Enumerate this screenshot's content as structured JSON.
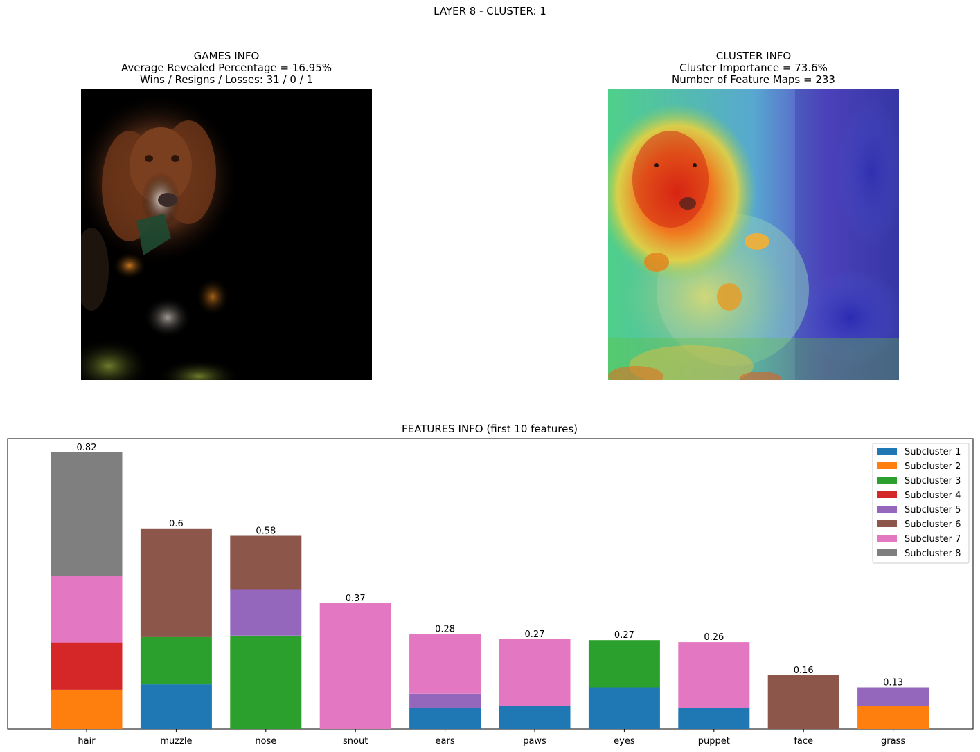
{
  "suptitle": "LAYER 8 - CLUSTER: 1",
  "games_panel": {
    "title": "GAMES INFO",
    "line1": "Average Revealed Percentage = 16.95%",
    "line2": "Wins / Resigns / Losses: 31 / 0 / 1"
  },
  "cluster_panel": {
    "title": "CLUSTER INFO",
    "line1": "Cluster Importance = 73.6%",
    "line2": "Number of Feature Maps = 233"
  },
  "chart_data": {
    "type": "bar",
    "stacked": true,
    "title": "FEATURES INFO (first 10 features)",
    "xlabel": "",
    "ylabel": "",
    "ylim": [
      0,
      0.861
    ],
    "legend_position": "top-right",
    "categories": [
      "hair",
      "muzzle",
      "nose",
      "snout",
      "ears",
      "paws",
      "eyes",
      "puppet",
      "face",
      "grass"
    ],
    "totals_labels": [
      "0.82",
      "0.6",
      "0.58",
      "0.37",
      "0.28",
      "0.27",
      "0.27",
      "0.26",
      "0.16",
      "0.13"
    ],
    "series": [
      {
        "name": "Subcluster 1",
        "color": "#1f77b4",
        "values": [
          0,
          0.133,
          0,
          0,
          0.063,
          0.069,
          0.124,
          0.063,
          0,
          0
        ]
      },
      {
        "name": "Subcluster 2",
        "color": "#ff7f0e",
        "values": [
          0.117,
          0,
          0,
          0,
          0,
          0,
          0,
          0,
          0,
          0.069
        ]
      },
      {
        "name": "Subcluster 3",
        "color": "#2ca02c",
        "values": [
          0,
          0.14,
          0.277,
          0,
          0,
          0,
          0.14,
          0,
          0,
          0
        ]
      },
      {
        "name": "Subcluster 4",
        "color": "#d62728",
        "values": [
          0.14,
          0,
          0,
          0,
          0,
          0,
          0,
          0,
          0,
          0
        ]
      },
      {
        "name": "Subcluster 5",
        "color": "#9467bd",
        "values": [
          0,
          0,
          0.136,
          0,
          0.042,
          0,
          0,
          0,
          0,
          0.055
        ]
      },
      {
        "name": "Subcluster 6",
        "color": "#8c564b",
        "values": [
          0,
          0.322,
          0.16,
          0,
          0,
          0,
          0,
          0,
          0.16,
          0
        ]
      },
      {
        "name": "Subcluster 7",
        "color": "#e377c2",
        "values": [
          0.196,
          0,
          0,
          0.373,
          0.177,
          0.198,
          0,
          0.195,
          0,
          0
        ]
      },
      {
        "name": "Subcluster 8",
        "color": "#7f7f7f",
        "values": [
          0.367,
          0,
          0,
          0,
          0,
          0,
          0,
          0,
          0,
          0
        ]
      }
    ]
  }
}
